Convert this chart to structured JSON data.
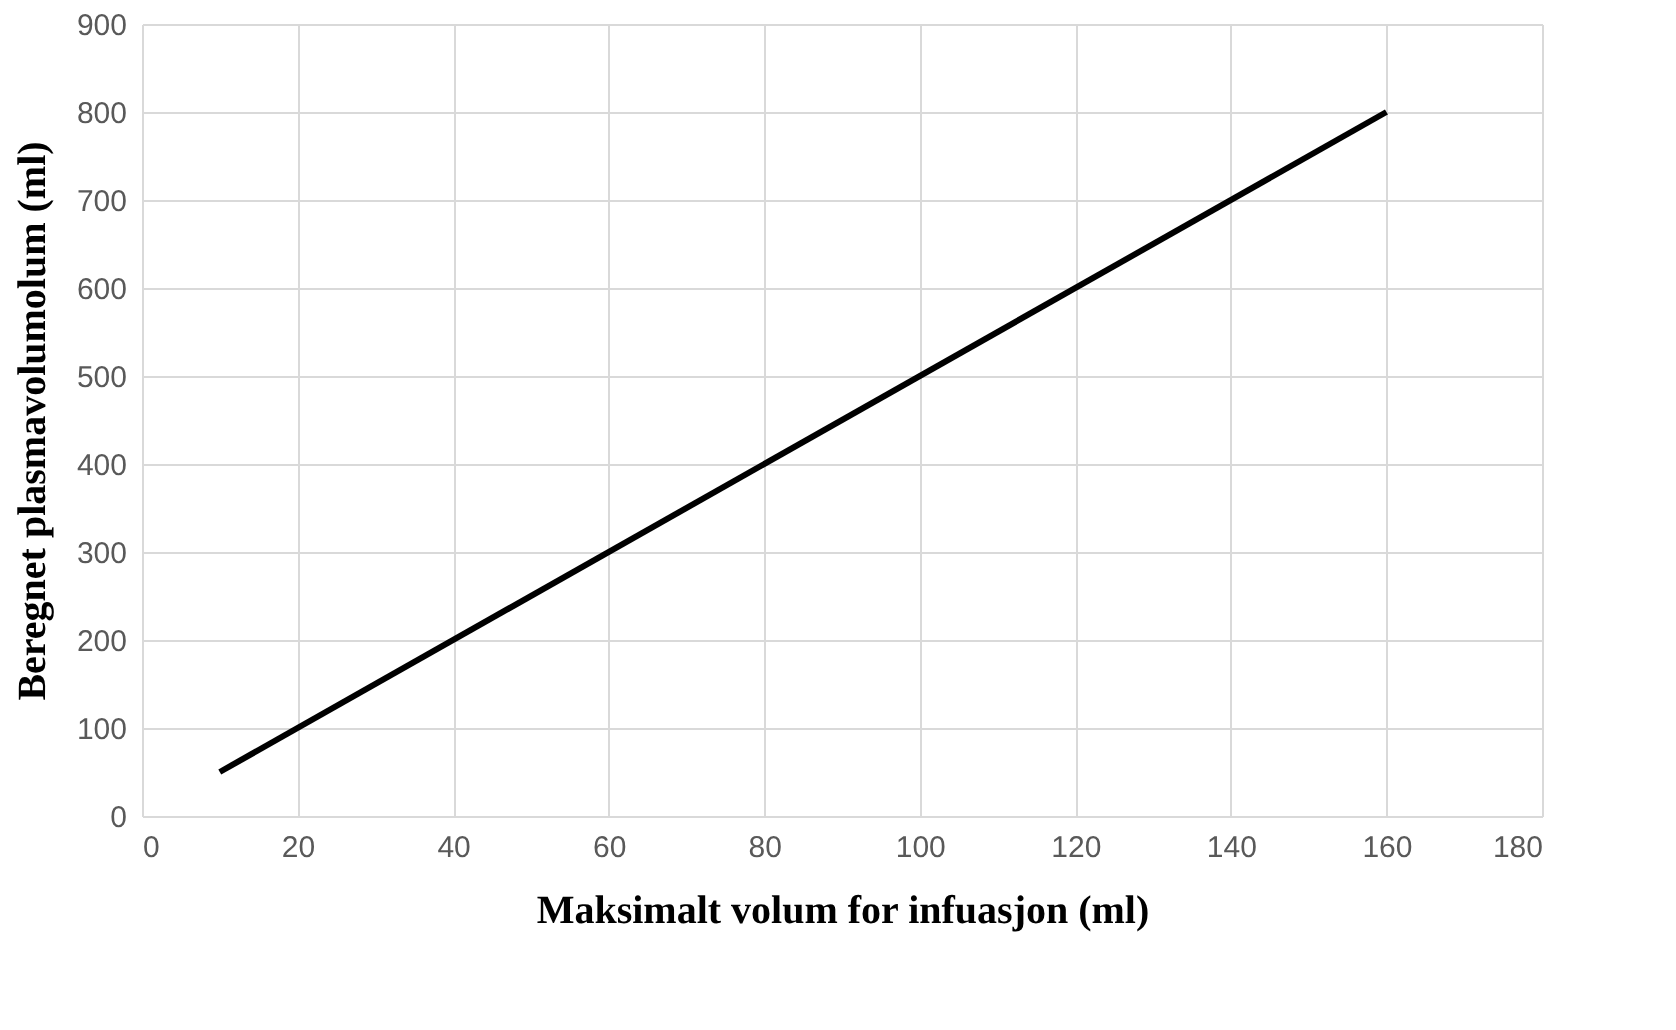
{
  "chart_data": {
    "type": "line",
    "xlabel": "Maksimalt volum for infuasjon (ml)",
    "ylabel": "Beregnet plasmavolumolum (ml)",
    "x": [
      10,
      160
    ],
    "series": [
      {
        "color": "#000000",
        "values": [
          50,
          800
        ]
      }
    ],
    "xlim": [
      0,
      180
    ],
    "xticks": [
      0,
      20,
      40,
      60,
      80,
      100,
      120,
      140,
      160,
      180
    ],
    "ylim": [
      0,
      900
    ],
    "yticks": [
      0,
      100,
      200,
      300,
      400,
      500,
      600,
      700,
      800,
      900
    ],
    "grid": true,
    "marker": "none",
    "line_style": "solid"
  }
}
